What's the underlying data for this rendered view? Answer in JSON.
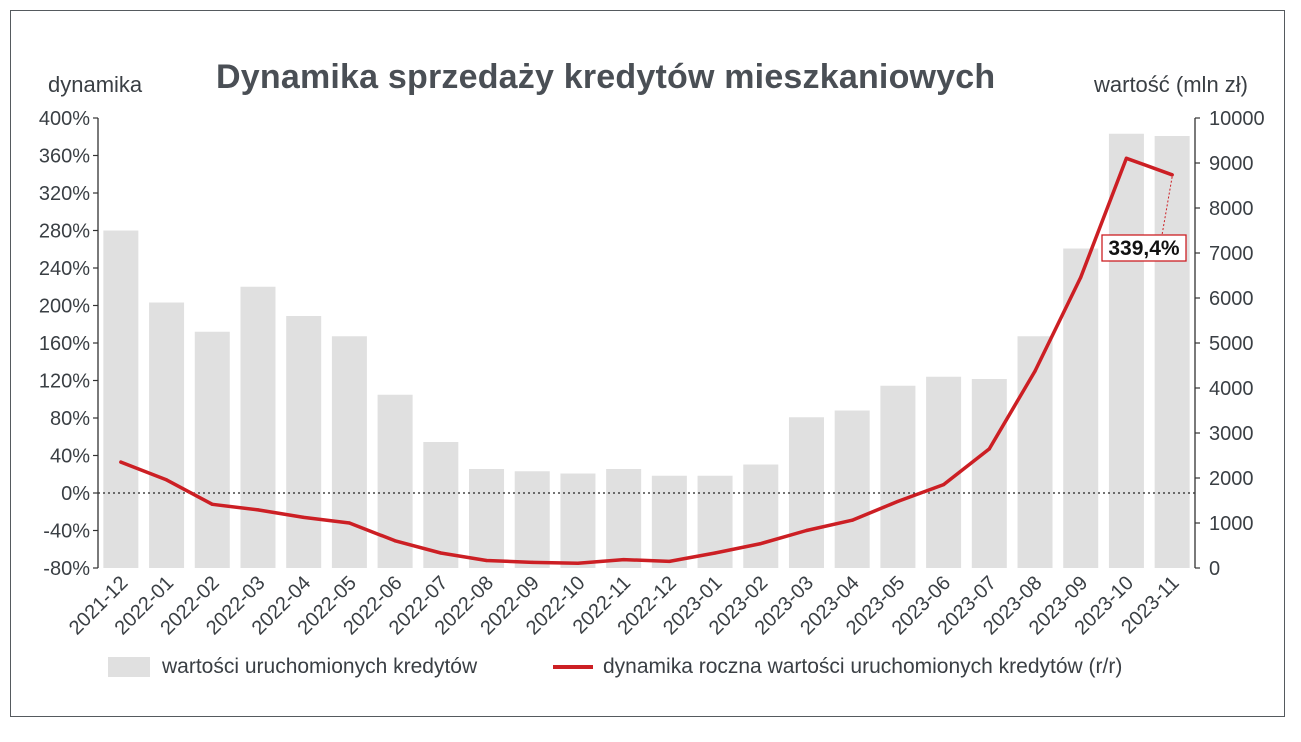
{
  "title": "Dynamika sprzedaży kredytów mieszkaniowych",
  "chart_data": {
    "type": "bar",
    "title": "Dynamika sprzedaży kredytów mieszkaniowych",
    "ylabel": "dynamika",
    "ylabel_right": "wartość (mln zł)",
    "ylim": [
      -80,
      400
    ],
    "ylim_right": [
      0,
      10000
    ],
    "yticks": [
      "400%",
      "360%",
      "320%",
      "280%",
      "240%",
      "200%",
      "160%",
      "120%",
      "80%",
      "40%",
      "0%",
      "-40%",
      "-80%"
    ],
    "yticks_right": [
      "10000",
      "9000",
      "8000",
      "7000",
      "6000",
      "5000",
      "4000",
      "3000",
      "2000",
      "1000",
      "0"
    ],
    "categories": [
      "2021-12",
      "2022-01",
      "2022-02",
      "2022-03",
      "2022-04",
      "2022-05",
      "2022-06",
      "2022-07",
      "2022-08",
      "2022-09",
      "2022-10",
      "2022-11",
      "2022-12",
      "2023-01",
      "2023-02",
      "2023-03",
      "2023-04",
      "2023-05",
      "2023-06",
      "2023-07",
      "2023-08",
      "2023-09",
      "2023-10",
      "2023-11"
    ],
    "series": [
      {
        "name": "wartości uruchomionych kredytów",
        "type": "bar",
        "axis": "right",
        "color": "#e0e0e0",
        "values": [
          7500,
          5900,
          5250,
          6250,
          5600,
          5150,
          3850,
          2800,
          2200,
          2150,
          2100,
          2200,
          2050,
          2050,
          2300,
          3350,
          3500,
          4050,
          4250,
          4200,
          5150,
          7100,
          9650,
          9600
        ]
      },
      {
        "name": "dynamika roczna wartości uruchomionych kredytów (r/r)",
        "type": "line",
        "axis": "left",
        "color": "#cc1f24",
        "values": [
          33,
          14,
          -12,
          -18,
          -26,
          -32,
          -51,
          -64,
          -72,
          -74,
          -75,
          -71,
          -73,
          -64,
          -54,
          -40,
          -29,
          -9,
          9,
          47,
          130,
          230,
          357,
          339.4
        ]
      }
    ],
    "annotation": {
      "text": "339,4%",
      "category": "2023-11"
    },
    "reference_line": {
      "value": 0,
      "style": "dotted"
    },
    "legend": "bottom"
  },
  "legend": {
    "bars": "wartości uruchomionych kredytów",
    "line": "dynamika roczna wartości uruchomionych kredytów (r/r)"
  },
  "axis_titles": {
    "left": "dynamika",
    "right": "wartość (mln zł)"
  }
}
